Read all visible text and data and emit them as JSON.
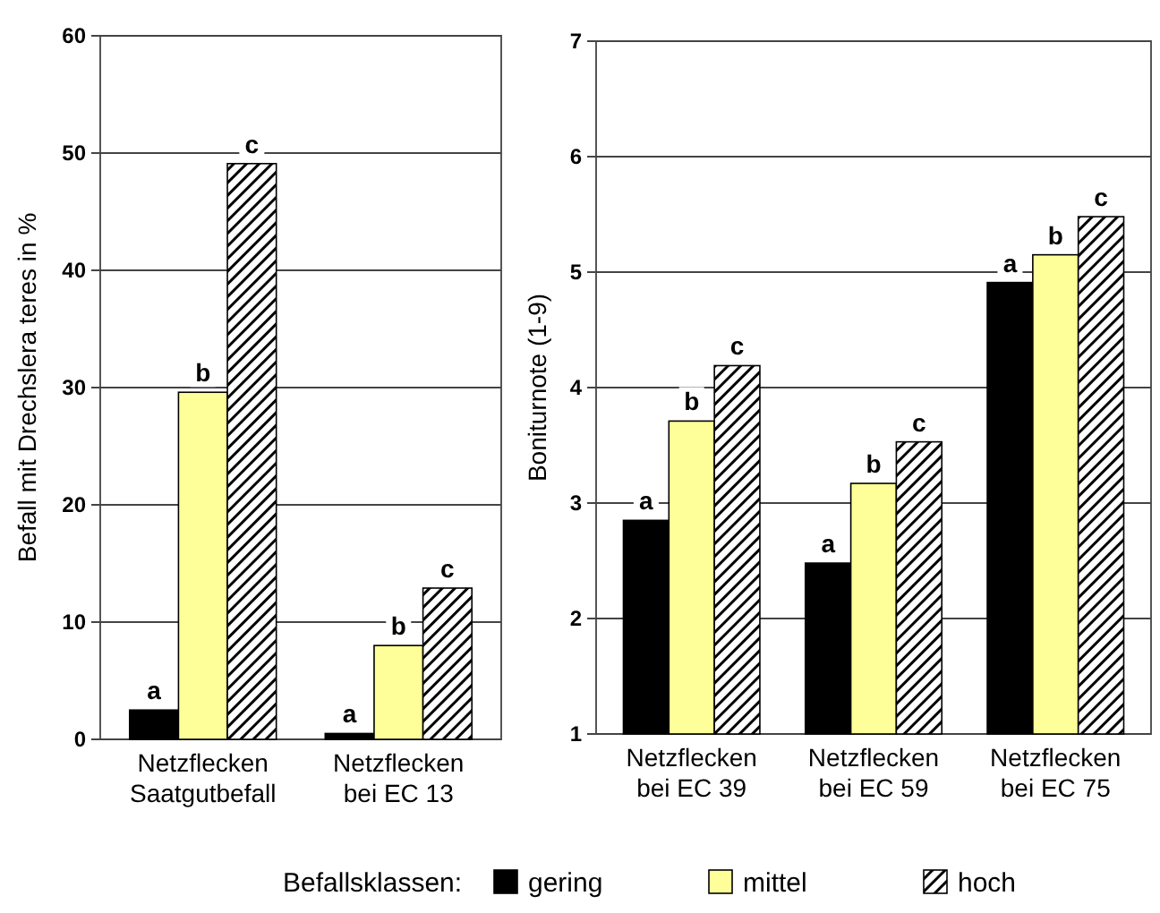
{
  "chart_data": [
    {
      "type": "bar",
      "ylabel": "Befall mit Drechslera teres in %",
      "categories": [
        "Netzflecken\nSaatgutbefall",
        "Netzflecken\nbei EC 13"
      ],
      "ylim": [
        0,
        60
      ],
      "yticks": [
        0,
        10,
        20,
        30,
        40,
        50,
        60
      ],
      "grid": "y",
      "series": [
        {
          "color": "#000000",
          "values": [
            2.5,
            0.5
          ]
        },
        {
          "color": "#ffff99",
          "values": [
            29.6,
            8.0
          ]
        },
        {
          "color": "#000000",
          "values": [
            49.1,
            12.9
          ]
        }
      ],
      "annotations": [
        "a",
        "b",
        "c",
        "a",
        "b",
        "c"
      ]
    },
    {
      "type": "bar",
      "ylabel": "Boniturnote (1-9)",
      "categories": [
        "Netzflecken\nbei EC 39",
        "Netzflecken\nbei EC 59",
        "Netzflecken\nbei EC 75"
      ],
      "ylim": [
        1,
        7
      ],
      "yticks": [
        1,
        2,
        3,
        4,
        5,
        6,
        7
      ],
      "grid": "y",
      "legend": "bottom",
      "legend_title": "Befallsklassen:",
      "series": [
        {
          "name": "gering",
          "color": "#000000",
          "values": [
            2.85,
            2.48,
            4.91
          ]
        },
        {
          "name": "mittel",
          "color": "#ffff99",
          "values": [
            3.71,
            3.17,
            5.15
          ]
        },
        {
          "name": "hoch",
          "color": "#000000",
          "values": [
            4.19,
            3.53,
            5.48
          ]
        }
      ],
      "annotations": [
        "a",
        "b",
        "c",
        "a",
        "b",
        "c",
        "a",
        "b",
        "c"
      ]
    }
  ]
}
